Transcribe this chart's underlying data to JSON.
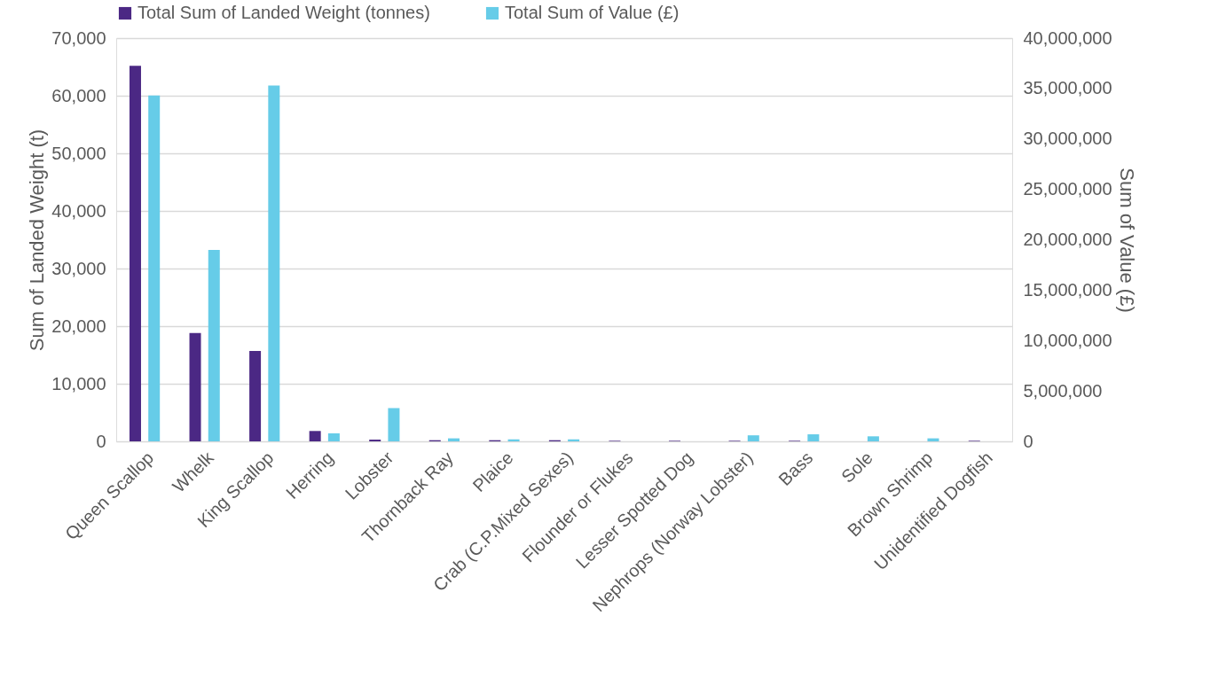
{
  "chart_data": {
    "type": "bar",
    "categories": [
      "Queen Scallop",
      "Whelk",
      "King Scallop",
      "Herring",
      "Lobster",
      "Thornback Ray",
      "Plaice",
      "Crab (C.P.Mixed Sexes)",
      "Flounder or Flukes",
      "Lesser Spotted Dog",
      "Nephrops (Norway Lobster)",
      "Bass",
      "Sole",
      "Brown Shrimp",
      "Unidentified Dogfish"
    ],
    "series": [
      {
        "name": "Total Sum of Landed Weight (tonnes)",
        "color": "#4b2884",
        "values": [
          65200,
          18800,
          15700,
          1800,
          300,
          200,
          200,
          200,
          100,
          100,
          100,
          100,
          0,
          0,
          100
        ]
      },
      {
        "name": "Total Sum of Value (£)",
        "color": "#66cce8",
        "axis": "y2",
        "values": [
          34300000,
          19000000,
          35300000,
          800000,
          3300000,
          300000,
          200000,
          200000,
          0,
          0,
          600000,
          700000,
          500000,
          300000,
          0
        ]
      }
    ],
    "ylabel": "Sum of Landed Weight (t)",
    "y2label": "Sum of Value (£)",
    "ylim": [
      0,
      70000
    ],
    "yticks": [
      0,
      {
        "value": 10000,
        "label": "10,000"
      },
      {
        "value": 20000,
        "label": "20,000"
      },
      {
        "value": 30000,
        "label": "30,000"
      },
      {
        "value": 40000,
        "label": "40,000"
      },
      {
        "value": 50000,
        "label": "50,000"
      },
      {
        "value": 60000,
        "label": "60,000"
      },
      {
        "value": 70000,
        "label": "70,000"
      }
    ],
    "y2lim": [
      0,
      40000000
    ],
    "y2ticks": [
      0,
      {
        "value": 5000000,
        "label": "5,000,000"
      },
      {
        "value": 10000000,
        "label": "10,000,000"
      },
      {
        "value": 15000000,
        "label": "15,000,000"
      },
      {
        "value": 20000000,
        "label": "20,000,000"
      },
      {
        "value": 25000000,
        "label": "25,000,000"
      },
      {
        "value": 30000000,
        "label": "30,000,000"
      },
      {
        "value": 35000000,
        "label": "35,000,000"
      },
      {
        "value": 40000000,
        "label": "40,000,000"
      }
    ],
    "grid": "y",
    "legend": "top"
  }
}
